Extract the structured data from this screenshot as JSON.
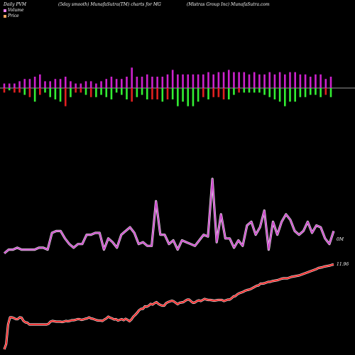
{
  "header": {
    "left": "Daily PVM",
    "center": "(5day smooth) MunafaSutra(TM) charts for MG",
    "right": "(Mistras Group Inc) MunafaSutra.com"
  },
  "legend": [
    {
      "label": "Volume",
      "color": "#ee82ee"
    },
    {
      "label": "Price",
      "color": "#f4a460"
    }
  ],
  "end_labels": {
    "volume": "0M",
    "price": "11.96"
  },
  "colors": {
    "background": "#000000",
    "up_bar": "#cc22cc",
    "down_bar_red": "#e02020",
    "down_bar_green": "#33ee33",
    "volume_line": "#cc44cc",
    "price_line": "#ff2020",
    "axis": "#cccccc"
  },
  "chart_data": [
    {
      "type": "bar",
      "title": "",
      "series": [
        {
          "values": [
            2,
            2,
            2,
            3,
            4,
            4,
            5,
            6,
            3,
            3,
            4,
            4,
            5,
            3,
            2,
            2,
            3,
            3,
            2,
            3,
            4,
            5,
            4,
            4,
            5,
            9,
            5,
            5,
            6,
            5,
            5,
            5,
            6,
            8,
            6,
            6,
            6,
            6,
            6,
            6,
            7,
            6,
            7,
            7,
            8,
            7,
            7,
            7,
            6,
            7,
            6,
            6,
            7,
            6,
            7,
            6,
            7,
            7,
            6,
            6,
            5,
            6,
            6,
            4,
            5
          ]
        },
        {
          "values": [
            2,
            1,
            2,
            2,
            3,
            4,
            6,
            3,
            2,
            4,
            5,
            6,
            8,
            4,
            2,
            2,
            3,
            4,
            4,
            3,
            4,
            5,
            2,
            3,
            5,
            6,
            4,
            3,
            5,
            5,
            5,
            6,
            5,
            5,
            8,
            6,
            8,
            8,
            6,
            4,
            5,
            4,
            4,
            5,
            5,
            3,
            2,
            2,
            2,
            2,
            2,
            3,
            4,
            5,
            6,
            8,
            6,
            6,
            4,
            4,
            3,
            3,
            4,
            3,
            4
          ]
        }
      ],
      "down_colors": [
        "r",
        "g",
        "r",
        "r",
        "g",
        "r",
        "g",
        "r",
        "g",
        "g",
        "g",
        "g",
        "r",
        "g",
        "r",
        "r",
        "g",
        "r",
        "g",
        "g",
        "g",
        "g",
        "g",
        "g",
        "g",
        "r",
        "g",
        "g",
        "g",
        "r",
        "r",
        "g",
        "r",
        "g",
        "g",
        "g",
        "g",
        "g",
        "g",
        "r",
        "g",
        "r",
        "r",
        "r",
        "g",
        "g",
        "r",
        "g",
        "g",
        "g",
        "g",
        "g",
        "g",
        "g",
        "g",
        "g",
        "g",
        "g",
        "g",
        "g",
        "g",
        "g",
        "g",
        "r",
        "g"
      ]
    },
    {
      "type": "line",
      "title": "",
      "series": [
        {
          "values": [
            10,
            12,
            12,
            13,
            12,
            12,
            12,
            12,
            13,
            13,
            12,
            21,
            22,
            22,
            18,
            15,
            13,
            15,
            15,
            20,
            20,
            21,
            21,
            12,
            18,
            16,
            13,
            20,
            22,
            24,
            21,
            15,
            16,
            14,
            14,
            38,
            20,
            20,
            15,
            17,
            12,
            17,
            16,
            15,
            14,
            17,
            20,
            19,
            50,
            16,
            31,
            18,
            18,
            13,
            17,
            14,
            25,
            27,
            20,
            24,
            33,
            12,
            27,
            20,
            27,
            31,
            28,
            22,
            20,
            22,
            27,
            21,
            25,
            24,
            18,
            15,
            22
          ]
        },
        {
          "values": [
            10,
            25,
            80,
            100,
            100,
            98,
            95,
            95,
            100,
            99,
            90,
            86,
            85,
            80,
            80,
            80,
            80,
            80,
            80,
            80,
            80,
            80,
            80,
            82,
            88,
            90,
            89,
            88,
            88,
            88,
            87,
            88,
            90,
            89,
            90,
            92,
            92,
            93,
            95,
            95,
            93,
            94,
            96,
            97,
            100,
            97,
            96,
            94,
            92,
            91,
            91,
            90,
            94,
            97,
            102,
            99,
            97,
            94,
            95,
            91,
            93,
            95,
            92,
            96,
            93,
            89,
            94,
            102,
            107,
            113,
            120,
            124,
            124,
            131,
            130,
            133,
            138,
            136,
            140,
            143,
            138,
            135,
            133,
            133,
            140,
            143,
            145,
            147,
            145,
            141,
            137,
            141,
            142,
            143,
            147,
            150,
            150,
            145,
            141,
            142,
            146,
            148,
            146,
            149,
            152,
            150,
            149,
            149,
            148,
            147,
            148,
            149,
            149,
            149,
            146,
            148,
            150,
            150,
            154,
            159,
            160,
            165,
            168,
            170,
            172,
            175,
            177,
            178,
            180,
            183,
            186,
            189,
            190,
            195,
            195,
            196,
            198,
            200,
            200,
            202,
            203,
            204,
            205,
            207,
            209,
            210,
            210,
            210,
            212,
            214,
            215,
            216,
            217,
            218,
            220,
            222,
            224,
            226,
            228,
            230,
            232,
            234,
            236,
            239,
            240,
            241,
            243,
            244,
            245,
            246,
            248,
            249
          ]
        }
      ]
    }
  ]
}
